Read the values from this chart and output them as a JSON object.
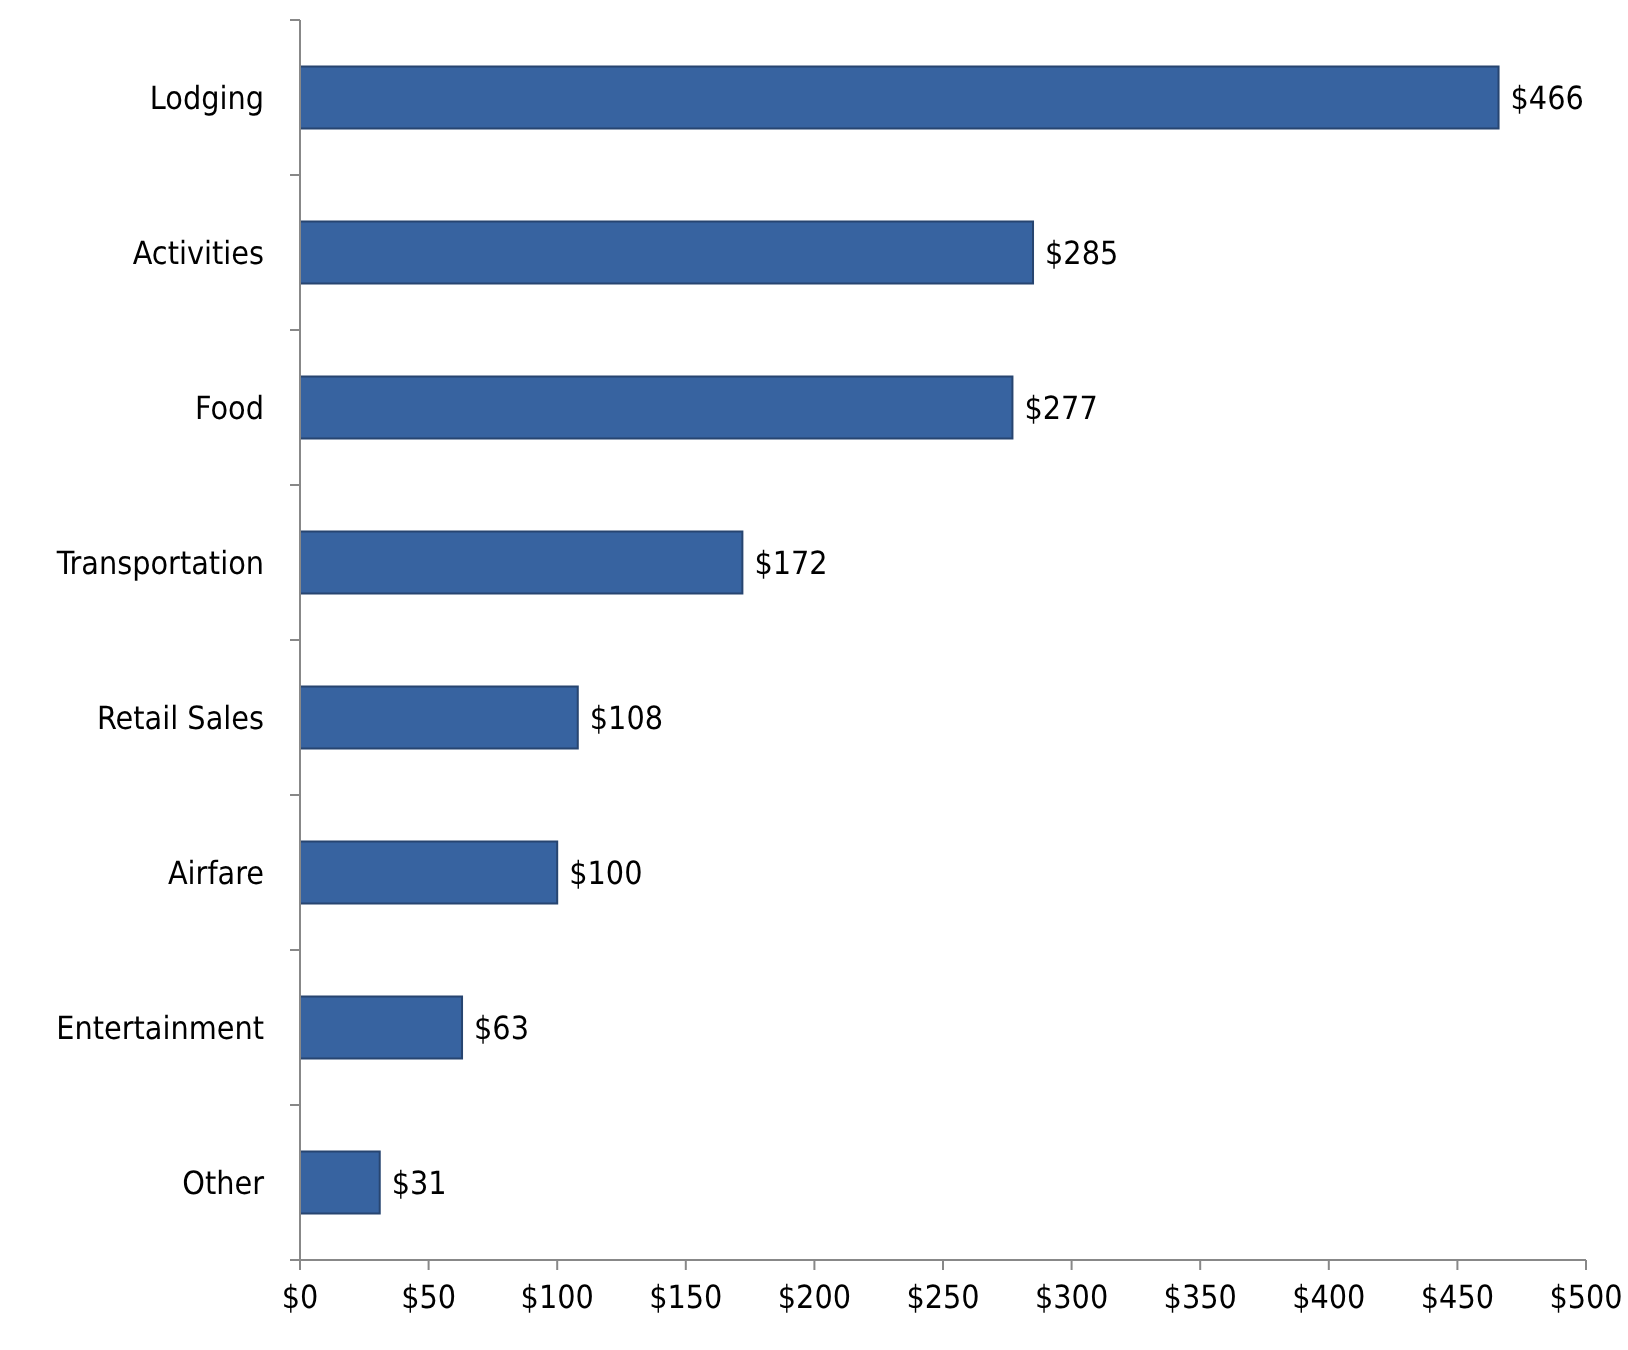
{
  "chart_data": {
    "type": "bar",
    "orientation": "horizontal",
    "categories": [
      "Lodging",
      "Activities",
      "Food",
      "Transportation",
      "Retail Sales",
      "Airfare",
      "Entertainment",
      "Other"
    ],
    "values": [
      466,
      285,
      277,
      172,
      108,
      100,
      63,
      31
    ],
    "value_labels": [
      "$466",
      "$285",
      "$277",
      "$172",
      "$108",
      "$100",
      "$63",
      "$31"
    ],
    "color": "#3763a0",
    "xlim": [
      0,
      500
    ],
    "xticks": [
      {
        "value": 0,
        "label": "$0"
      },
      {
        "value": 50,
        "label": "$50"
      },
      {
        "value": 100,
        "label": "$100"
      },
      {
        "value": 150,
        "label": "$150"
      },
      {
        "value": 200,
        "label": "$200"
      },
      {
        "value": 250,
        "label": "$250"
      },
      {
        "value": 300,
        "label": "$300"
      },
      {
        "value": 350,
        "label": "$350"
      },
      {
        "value": 400,
        "label": "$400"
      },
      {
        "value": 450,
        "label": "$450"
      },
      {
        "value": 500,
        "label": "$500"
      }
    ],
    "grid": false
  }
}
